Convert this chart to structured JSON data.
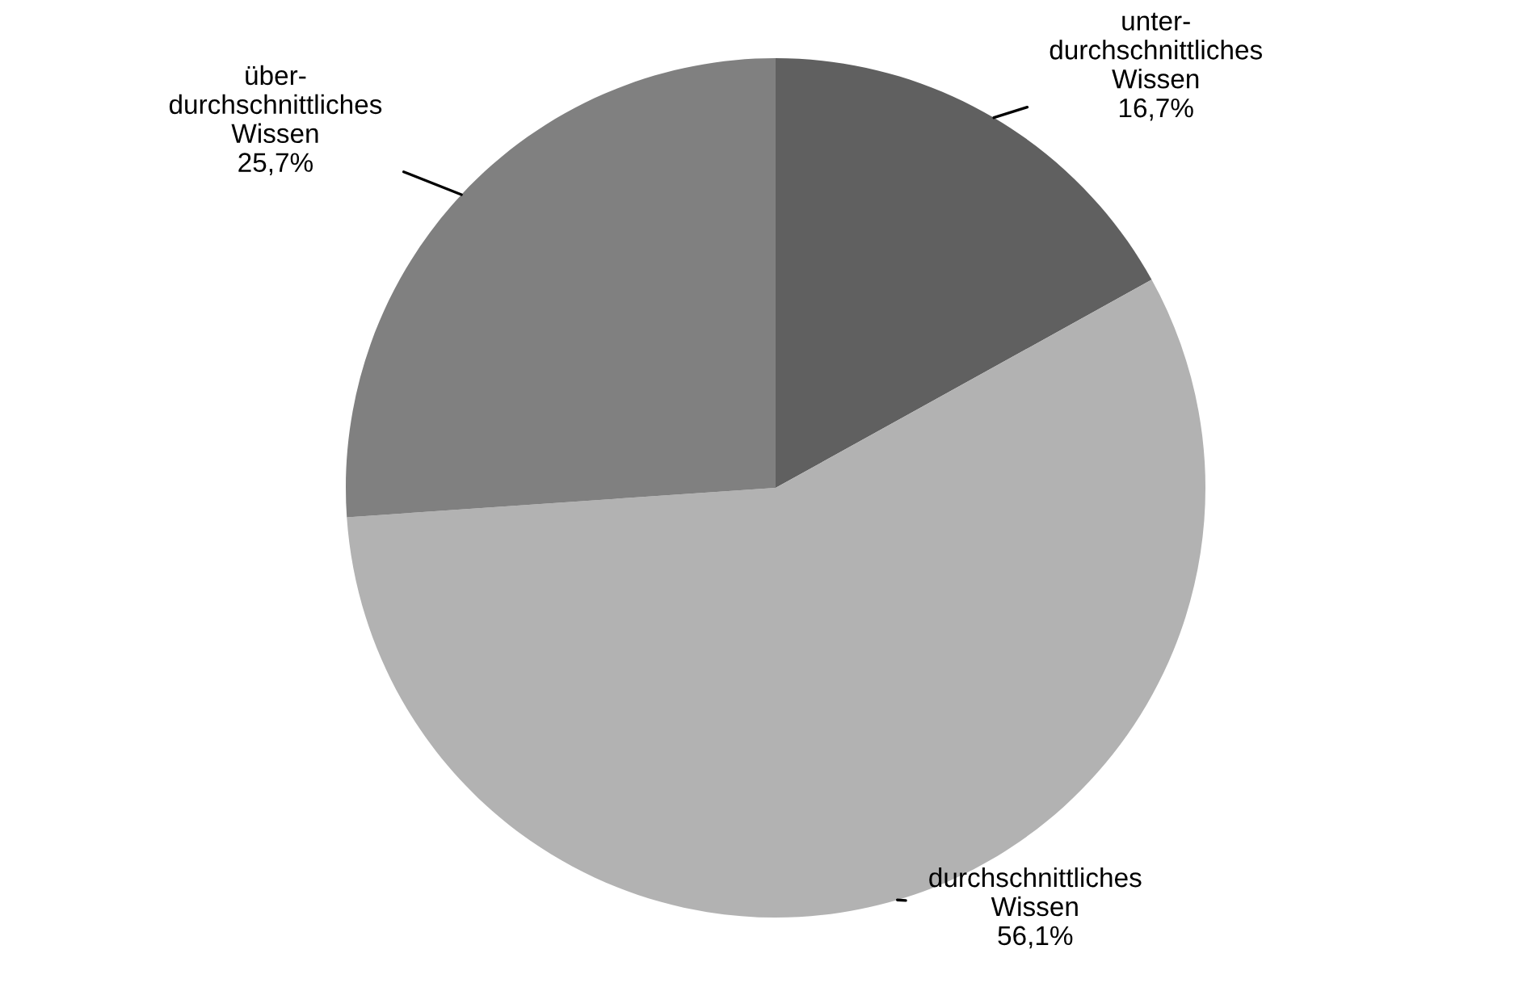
{
  "chart_data": {
    "type": "pie",
    "categories": [
      "unter-\ndurchschnittliches\nWissen",
      "durchschnittliches\nWissen",
      "über-\ndurchschnittliches\nWissen"
    ],
    "values": [
      16.7,
      56.1,
      25.7
    ],
    "value_labels": [
      "16,7%",
      "56,1%",
      "25,7%"
    ],
    "colors": [
      "#606060",
      "#b2b2b2",
      "#808080"
    ],
    "legend": false
  }
}
